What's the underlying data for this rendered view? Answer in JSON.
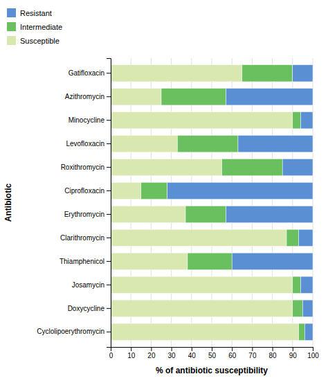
{
  "chart_data": {
    "type": "bar",
    "orientation": "horizontal",
    "stacked": true,
    "categories": [
      "Cyclolipoerythromycin",
      "Doxycycline",
      "Josamycin",
      "Thiamphenicol",
      "Clarithromycin",
      "Erythromycin",
      "Ciprofloxacin",
      "Roxithromycin",
      "Levofloxacin",
      "Minocycline",
      "Azithromycin",
      "Gatifloxacin"
    ],
    "series": [
      {
        "name": "Susceptible",
        "color": "#d9e8b0",
        "values": [
          93,
          90,
          90,
          38,
          87,
          37,
          15,
          55,
          33,
          90,
          25,
          65
        ]
      },
      {
        "name": "Intermediate",
        "color": "#6abf5e",
        "values": [
          3,
          5,
          4,
          22,
          6,
          20,
          13,
          30,
          30,
          4,
          32,
          25
        ]
      },
      {
        "name": "Resistant",
        "color": "#5b8fd4",
        "values": [
          4,
          5,
          6,
          40,
          7,
          43,
          72,
          15,
          37,
          6,
          43,
          10
        ]
      }
    ],
    "xlabel": "% of antibiotic susceptibility",
    "ylabel": "Antibiotic",
    "xlim": [
      0,
      100
    ],
    "xticks": [
      0,
      10,
      20,
      30,
      40,
      50,
      60,
      70,
      80,
      90,
      100
    ],
    "grid": true,
    "legend": "upper left"
  }
}
